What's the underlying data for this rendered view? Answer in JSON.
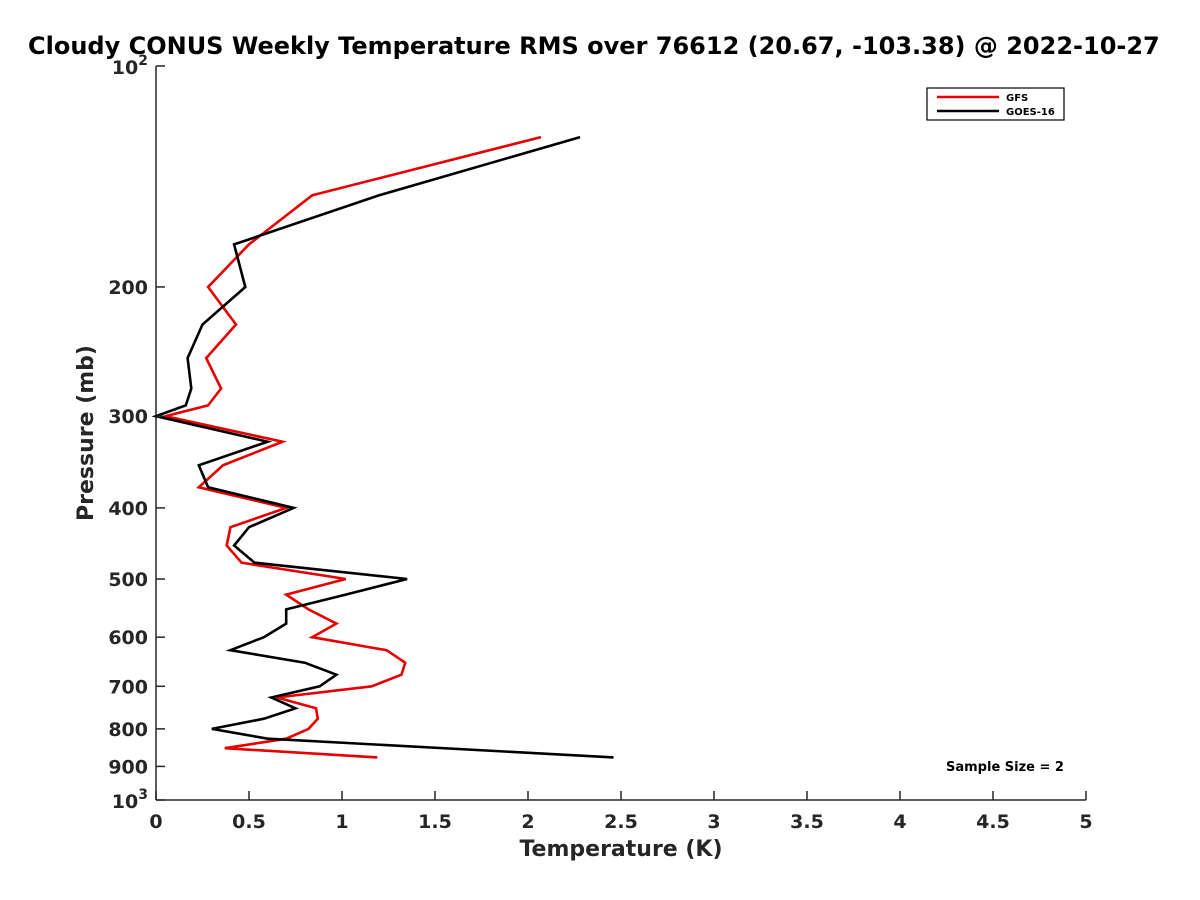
{
  "chart_data": {
    "type": "line",
    "title": "Cloudy CONUS Weekly Temperature RMS over 76612 (20.67, -103.38) @ 2022-10-27",
    "xlabel": "Temperature (K)",
    "ylabel": "Pressure (mb)",
    "xlim": [
      0,
      5
    ],
    "ylim": [
      100,
      1000
    ],
    "y_scale": "log",
    "y_reversed": true,
    "x_ticks": [
      {
        "value": 0,
        "label": "0"
      },
      {
        "value": 0.5,
        "label": "0.5"
      },
      {
        "value": 1,
        "label": "1"
      },
      {
        "value": 1.5,
        "label": "1.5"
      },
      {
        "value": 2,
        "label": "2"
      },
      {
        "value": 2.5,
        "label": "2.5"
      },
      {
        "value": 3,
        "label": "3"
      },
      {
        "value": 3.5,
        "label": "3.5"
      },
      {
        "value": 4,
        "label": "4"
      },
      {
        "value": 4.5,
        "label": "4.5"
      },
      {
        "value": 5,
        "label": "5"
      }
    ],
    "y_ticks": [
      {
        "value": 100,
        "base": "10",
        "exp": "2"
      },
      {
        "value": 200,
        "label": "200"
      },
      {
        "value": 300,
        "label": "300"
      },
      {
        "value": 400,
        "label": "400"
      },
      {
        "value": 500,
        "label": "500"
      },
      {
        "value": 600,
        "label": "600"
      },
      {
        "value": 700,
        "label": "700"
      },
      {
        "value": 800,
        "label": "800"
      },
      {
        "value": 900,
        "label": "900"
      },
      {
        "value": 1000,
        "base": "10",
        "exp": "3"
      }
    ],
    "grid": false,
    "legend_position": "top-right",
    "annotation": "Sample Size = 2",
    "series": [
      {
        "name": "GFS",
        "color": "#e60000",
        "points": [
          [
            2.07,
            125
          ],
          [
            0.84,
            150
          ],
          [
            0.5,
            175
          ],
          [
            0.28,
            200
          ],
          [
            0.43,
            225
          ],
          [
            0.27,
            250
          ],
          [
            0.35,
            275
          ],
          [
            0.28,
            290
          ],
          [
            0.05,
            300
          ],
          [
            0.68,
            325
          ],
          [
            0.36,
            350
          ],
          [
            0.23,
            375
          ],
          [
            0.7,
            400
          ],
          [
            0.4,
            425
          ],
          [
            0.38,
            450
          ],
          [
            0.46,
            475
          ],
          [
            1.02,
            500
          ],
          [
            0.7,
            525
          ],
          [
            0.82,
            550
          ],
          [
            0.97,
            575
          ],
          [
            0.84,
            600
          ],
          [
            1.24,
            625
          ],
          [
            1.34,
            650
          ],
          [
            1.32,
            675
          ],
          [
            1.16,
            700
          ],
          [
            0.65,
            725
          ],
          [
            0.86,
            750
          ],
          [
            0.87,
            775
          ],
          [
            0.82,
            800
          ],
          [
            0.7,
            825
          ],
          [
            0.37,
            850
          ],
          [
            1.19,
            875
          ]
        ]
      },
      {
        "name": "GOES-16",
        "color": "#000000",
        "points": [
          [
            2.28,
            125
          ],
          [
            1.2,
            150
          ],
          [
            0.42,
            175
          ],
          [
            0.48,
            200
          ],
          [
            0.25,
            225
          ],
          [
            0.17,
            250
          ],
          [
            0.19,
            275
          ],
          [
            0.16,
            290
          ],
          [
            0.0,
            300
          ],
          [
            0.6,
            325
          ],
          [
            0.23,
            350
          ],
          [
            0.28,
            375
          ],
          [
            0.74,
            400
          ],
          [
            0.5,
            425
          ],
          [
            0.42,
            450
          ],
          [
            0.53,
            475
          ],
          [
            1.35,
            500
          ],
          [
            1.02,
            525
          ],
          [
            0.7,
            550
          ],
          [
            0.7,
            575
          ],
          [
            0.58,
            600
          ],
          [
            0.4,
            625
          ],
          [
            0.8,
            650
          ],
          [
            0.97,
            675
          ],
          [
            0.88,
            700
          ],
          [
            0.62,
            725
          ],
          [
            0.75,
            750
          ],
          [
            0.58,
            775
          ],
          [
            0.3,
            800
          ],
          [
            0.6,
            825
          ],
          [
            2.46,
            875
          ]
        ]
      }
    ]
  }
}
